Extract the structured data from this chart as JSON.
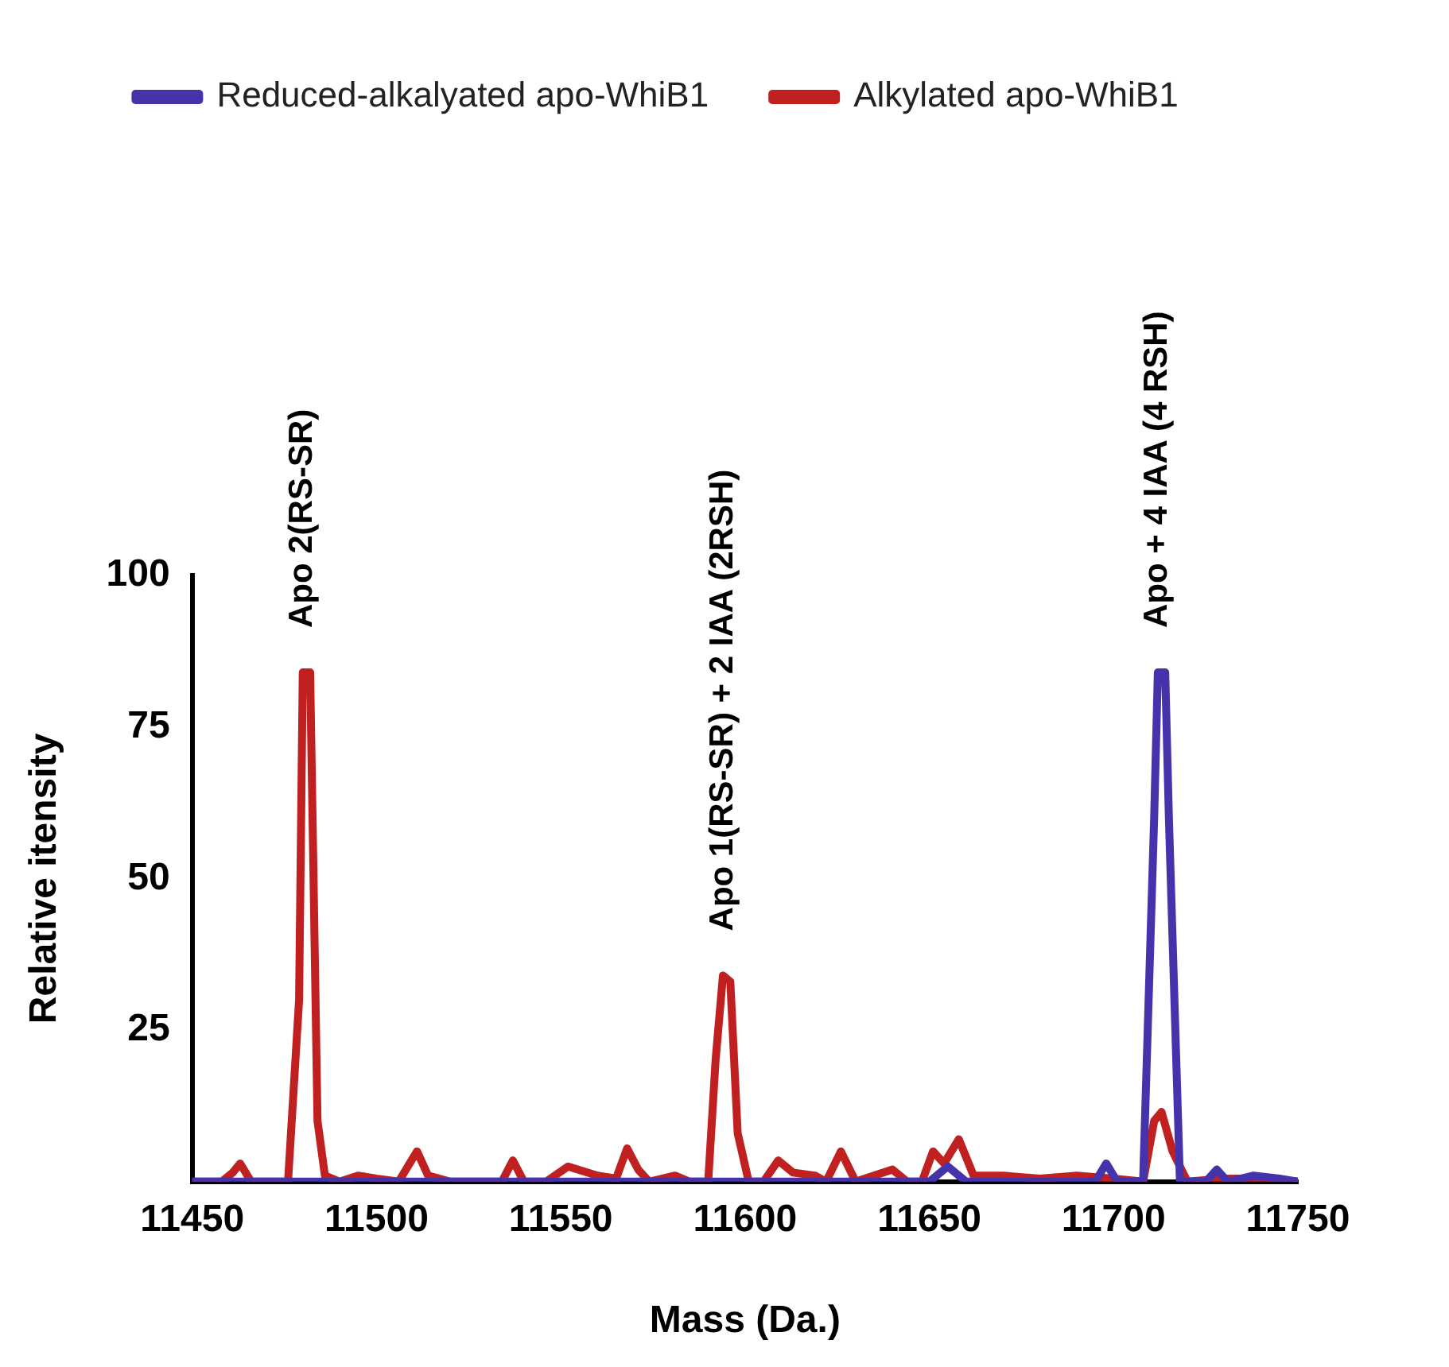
{
  "chart_data": {
    "type": "line",
    "xlabel": "Mass (Da.)",
    "ylabel": "Relative itensity",
    "xlim": [
      11450,
      11750
    ],
    "xticks": [
      11450,
      11500,
      11550,
      11600,
      11650,
      11700,
      11750
    ],
    "ylim": [
      0,
      100
    ],
    "yticks": [
      25,
      50,
      75,
      100
    ],
    "grid": false,
    "legend": "top",
    "marker": "none",
    "line_style": "solid",
    "annotations": [
      {
        "text": "Apo 2(RS-SR)",
        "x": 11480,
        "y": 84
      },
      {
        "text": "Apo 1(RS-SR) + 2 IAA (2RSH)",
        "x": 11594,
        "y": 34
      },
      {
        "text": "Apo + 4 IAA (4 RSH)",
        "x": 11712,
        "y": 84
      }
    ],
    "series": [
      {
        "name": "Reduced-alkalyated apo-WhiB1",
        "color": "#4433aa",
        "x": [
          11450,
          11650,
          11655,
          11660,
          11695,
          11698,
          11701,
          11708,
          11711,
          11712,
          11714,
          11715,
          11718,
          11725,
          11728,
          11731,
          11738,
          11745,
          11750
        ],
        "values": [
          0,
          0,
          2.5,
          0,
          0,
          3,
          0,
          0,
          60,
          84,
          84,
          60,
          0,
          0,
          2,
          0,
          1,
          0.5,
          0
        ]
      },
      {
        "name": "Alkylated apo-WhiB1",
        "color": "#c0201f",
        "x": [
          11450,
          11458,
          11461,
          11463,
          11466,
          11476,
          11479,
          11480,
          11482,
          11484,
          11486,
          11490,
          11495,
          11500,
          11506,
          11509,
          11511,
          11514,
          11520,
          11534,
          11537,
          11540,
          11546,
          11552,
          11560,
          11565,
          11568,
          11571,
          11574,
          11581,
          11585,
          11590,
          11592,
          11594,
          11596,
          11598,
          11601,
          11605,
          11609,
          11613,
          11619,
          11622,
          11626,
          11630,
          11640,
          11644,
          11648,
          11651,
          11654,
          11658,
          11662,
          11670,
          11680,
          11690,
          11700,
          11708,
          11711,
          11713,
          11716,
          11720,
          11730,
          11740,
          11750
        ],
        "values": [
          0,
          0,
          1.5,
          3,
          0,
          0,
          30,
          84,
          84,
          10,
          1,
          0,
          1,
          0.5,
          0,
          3,
          5,
          1,
          0,
          0,
          3.5,
          0,
          0,
          2.5,
          1,
          0.5,
          5.5,
          2,
          0,
          1,
          0,
          0,
          20,
          34,
          33,
          8,
          0,
          0,
          3.5,
          1.5,
          1,
          0,
          5,
          0,
          2,
          0,
          0,
          5,
          3,
          7,
          1,
          1,
          0.5,
          1,
          0.5,
          0,
          10,
          11.5,
          5,
          0,
          0.5,
          0.5,
          0
        ]
      }
    ]
  }
}
